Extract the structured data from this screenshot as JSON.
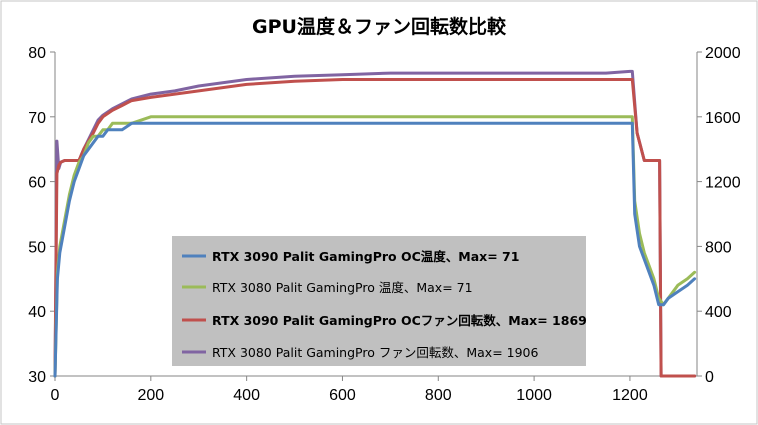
{
  "chart_data": {
    "type": "line",
    "title": "GPU温度＆ファン回転数比較",
    "xlabel": "",
    "ylabel": "",
    "y2label": "",
    "xlim": [
      0,
      1340
    ],
    "x_ticks": [
      "0",
      "200",
      "400",
      "600",
      "800",
      "1000",
      "1200"
    ],
    "ylim": [
      30,
      80
    ],
    "y_ticks": [
      "80",
      "70",
      "60",
      "50",
      "40",
      "30"
    ],
    "y2lim": [
      0,
      2000
    ],
    "y2_ticks": [
      "2000",
      "1600",
      "1200",
      "800",
      "400",
      "0"
    ],
    "grid": false,
    "legend_position": "center-left",
    "series": [
      {
        "name": "RTX 3090 Palit GamingPro OC温度、Max= 71",
        "axis": "left",
        "color": "#4f81bd",
        "bold": true,
        "x": [
          0,
          5,
          10,
          20,
          30,
          40,
          50,
          60,
          70,
          80,
          90,
          100,
          110,
          120,
          140,
          160,
          200,
          260,
          300,
          400,
          500,
          600,
          700,
          800,
          900,
          1000,
          1100,
          1150,
          1200,
          1205,
          1210,
          1220,
          1230,
          1240,
          1250,
          1260,
          1270,
          1280,
          1300,
          1320,
          1335
        ],
        "y": [
          30,
          45,
          49,
          53,
          57,
          60,
          62,
          64,
          65,
          66,
          67,
          67,
          68,
          68,
          68,
          69,
          69,
          69,
          69,
          69,
          69,
          69,
          69,
          69,
          69,
          69,
          69,
          69,
          69,
          69,
          55,
          50,
          48,
          46,
          44,
          41,
          41,
          42,
          43,
          44,
          45
        ]
      },
      {
        "name": "RTX 3080 Palit GamingPro 温度、Max= 71",
        "axis": "left",
        "color": "#9bbb59",
        "bold": false,
        "x": [
          0,
          5,
          10,
          20,
          30,
          40,
          50,
          60,
          70,
          80,
          90,
          100,
          110,
          120,
          140,
          160,
          200,
          260,
          300,
          400,
          500,
          600,
          700,
          800,
          900,
          1000,
          1100,
          1150,
          1200,
          1205,
          1210,
          1220,
          1230,
          1240,
          1250,
          1260,
          1270,
          1280,
          1300,
          1320,
          1335
        ],
        "y": [
          30,
          46,
          50,
          54,
          58,
          61,
          63,
          64,
          66,
          67,
          67,
          68,
          68,
          69,
          69,
          69,
          70,
          70,
          70,
          70,
          70,
          70,
          70,
          70,
          70,
          70,
          70,
          70,
          70,
          70,
          57,
          52,
          49,
          47,
          45,
          42,
          41,
          42,
          44,
          45,
          46
        ]
      },
      {
        "name": "RTX 3090 Palit GamingPro OCファン回転数、Max= 1869",
        "axis": "right",
        "color": "#c0504d",
        "bold": true,
        "x": [
          0,
          4,
          8,
          12,
          20,
          30,
          40,
          50,
          60,
          70,
          80,
          90,
          100,
          120,
          140,
          160,
          200,
          250,
          300,
          400,
          500,
          600,
          700,
          800,
          900,
          1000,
          1100,
          1150,
          1200,
          1205,
          1215,
          1230,
          1240,
          1250,
          1260,
          1262,
          1265,
          1270,
          1300,
          1335
        ],
        "y": [
          0,
          1250,
          1300,
          1320,
          1330,
          1330,
          1330,
          1330,
          1400,
          1450,
          1500,
          1560,
          1600,
          1640,
          1670,
          1700,
          1720,
          1740,
          1760,
          1800,
          1820,
          1830,
          1830,
          1830,
          1830,
          1830,
          1830,
          1830,
          1830,
          1830,
          1500,
          1330,
          1330,
          1330,
          1330,
          1330,
          0,
          0,
          0,
          0
        ]
      },
      {
        "name": "RTX 3080 Palit GamingPro ファン回転数、Max= 1906",
        "axis": "right",
        "color": "#8064a2",
        "bold": false,
        "x": [
          0,
          4,
          8,
          12,
          20,
          30,
          40,
          50,
          60,
          70,
          80,
          90,
          100,
          120,
          140,
          160,
          200,
          250,
          300,
          400,
          500,
          600,
          700,
          800,
          900,
          1000,
          1100,
          1150,
          1200,
          1205,
          1215,
          1230,
          1240,
          1250,
          1260,
          1262,
          1265,
          1270,
          1300,
          1335
        ],
        "y": [
          0,
          1450,
          1280,
          1320,
          1330,
          1330,
          1330,
          1330,
          1400,
          1460,
          1520,
          1580,
          1610,
          1650,
          1680,
          1710,
          1740,
          1760,
          1790,
          1830,
          1850,
          1860,
          1870,
          1870,
          1870,
          1870,
          1870,
          1870,
          1880,
          1880,
          1500,
          1330,
          1330,
          1330,
          1330,
          1330,
          0,
          0,
          0,
          0
        ]
      }
    ]
  }
}
